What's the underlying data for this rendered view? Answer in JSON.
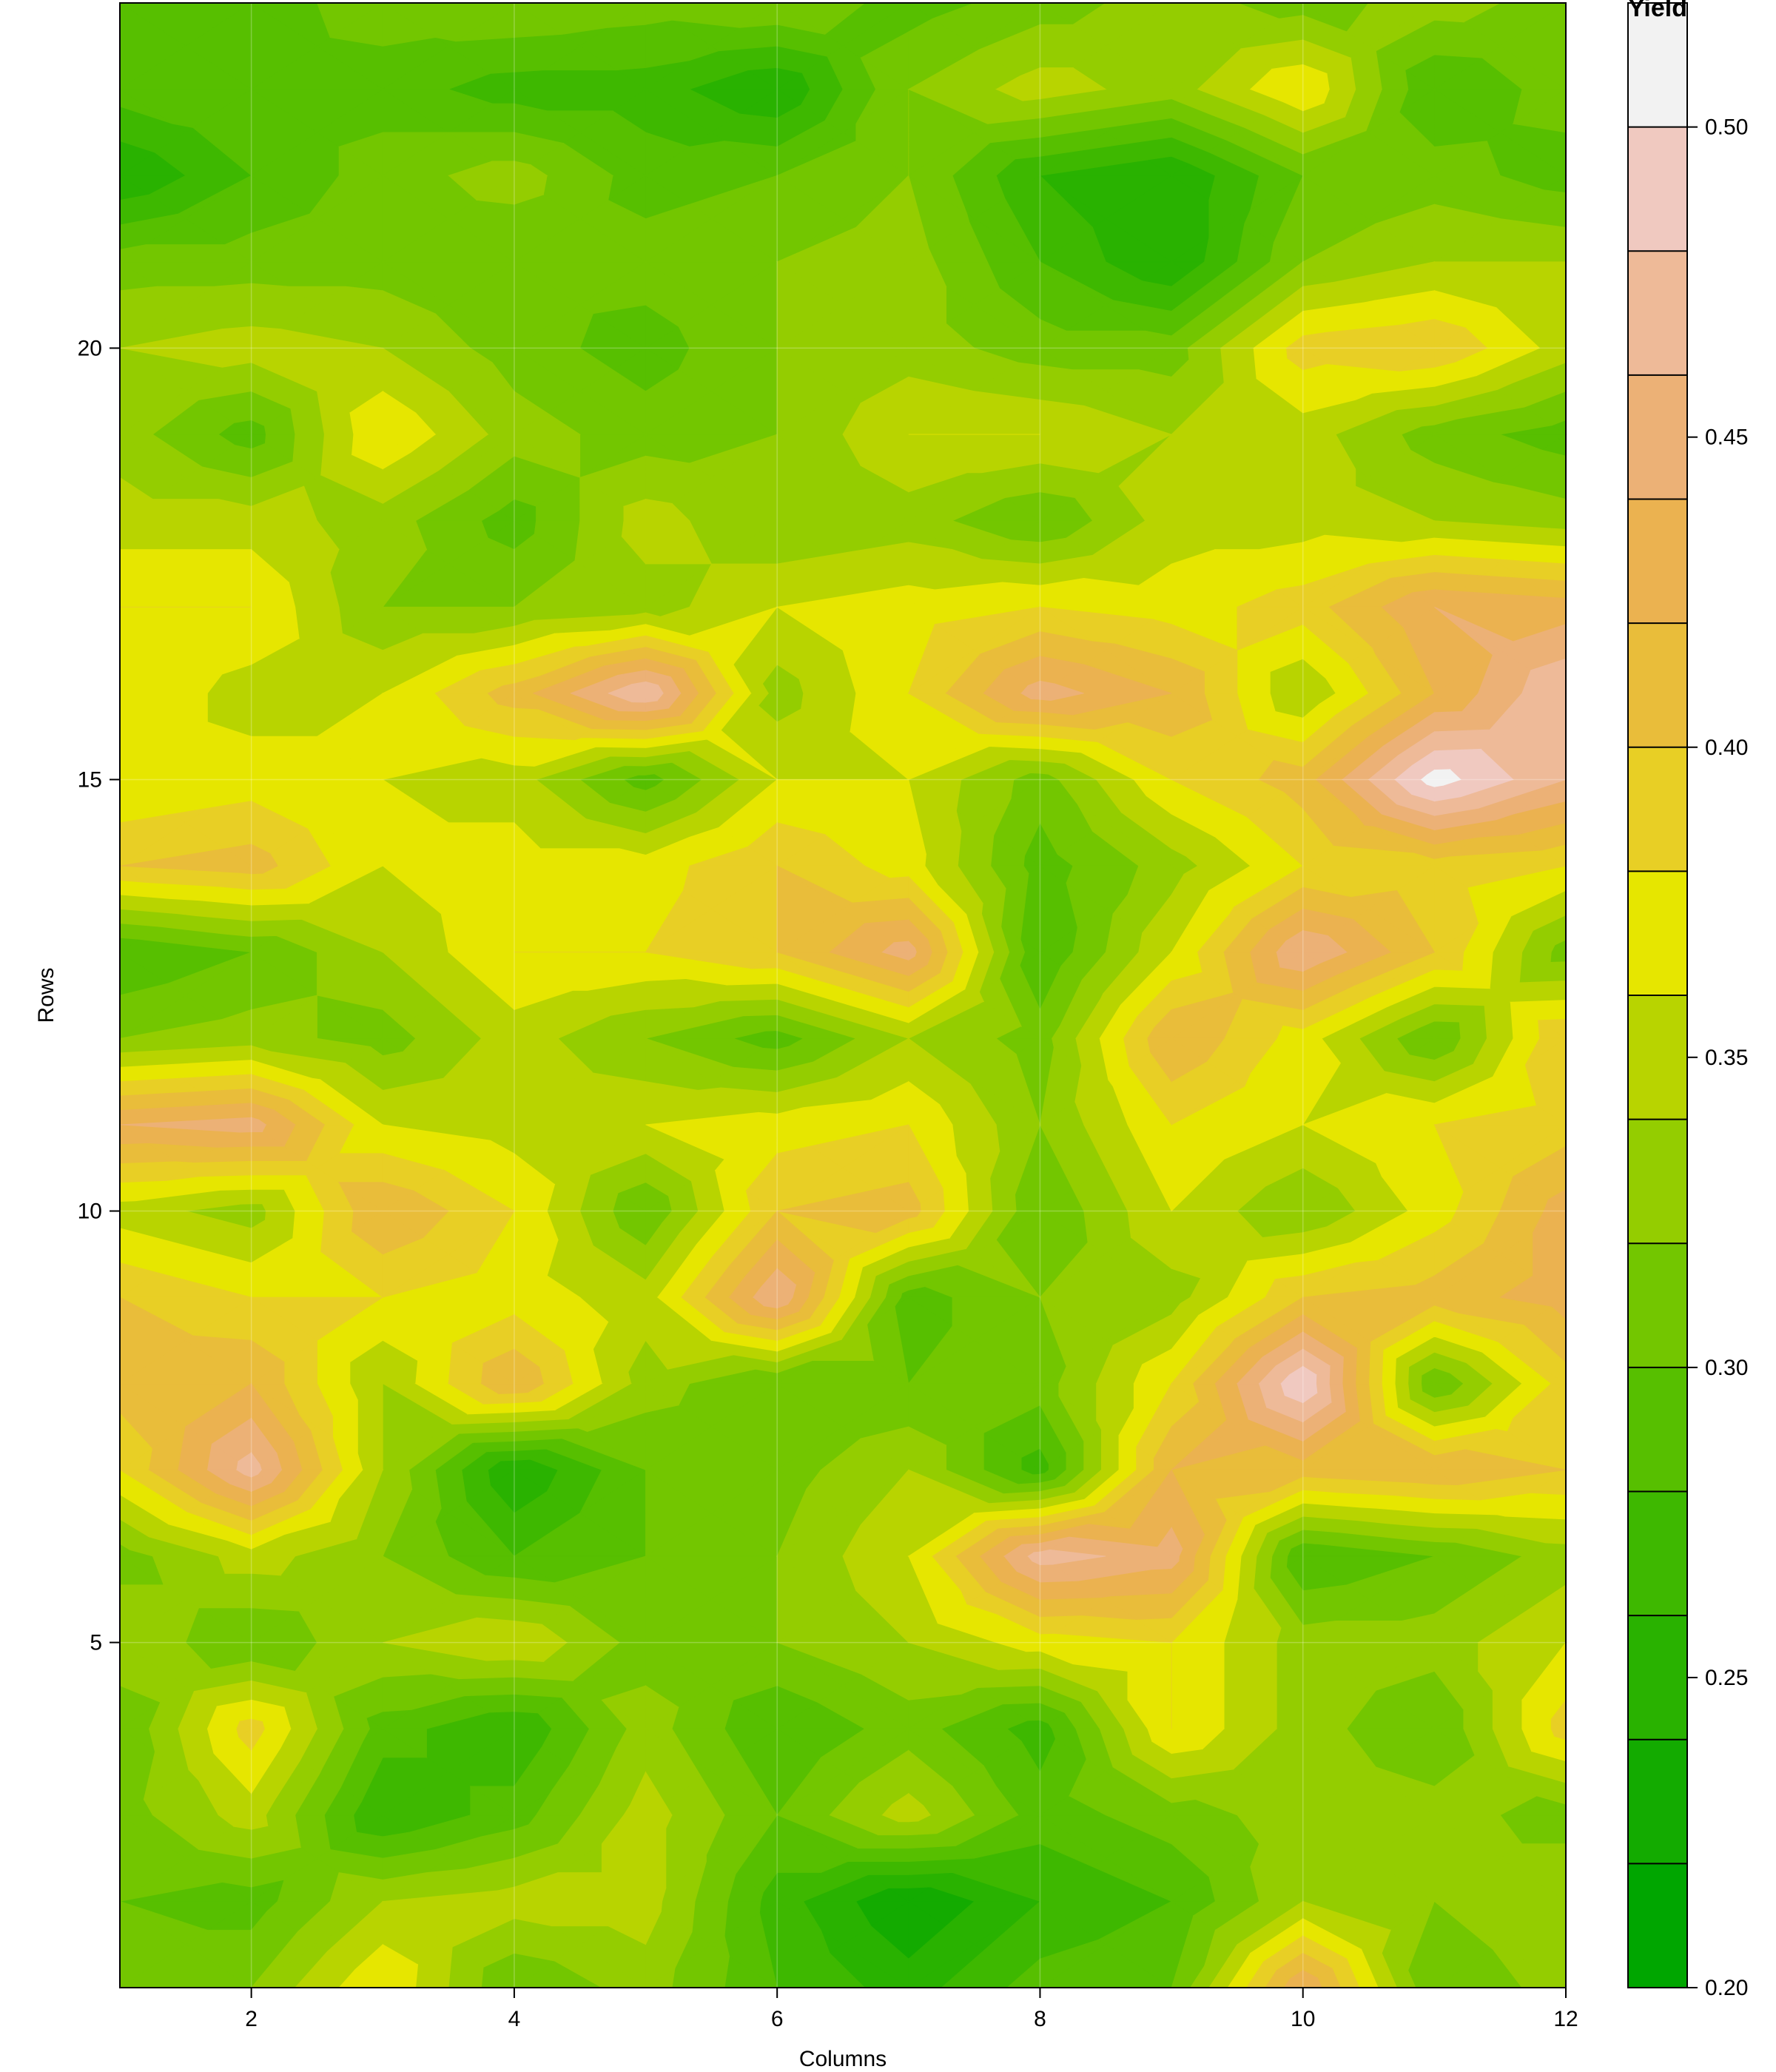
{
  "chart_data": {
    "type": "heatmap",
    "subtype": "filled-contour",
    "xlabel": "Columns",
    "ylabel": "Rows",
    "x_range": [
      1,
      12
    ],
    "y_range": [
      1,
      24
    ],
    "x_ticks": [
      2,
      4,
      6,
      8,
      10,
      12
    ],
    "y_ticks": [
      5,
      10,
      15,
      20
    ],
    "grid": true,
    "legend": {
      "title": "Yield",
      "placement": "right",
      "levels": [
        0.2,
        0.22,
        0.24,
        0.26,
        0.28,
        0.3,
        0.32,
        0.34,
        0.36,
        0.38,
        0.4,
        0.42,
        0.44,
        0.46,
        0.48,
        0.5,
        0.52
      ],
      "labeled_ticks": [
        0.2,
        0.25,
        0.3,
        0.35,
        0.4,
        0.45,
        0.5
      ],
      "colors": [
        "#00A600",
        "#13AB00",
        "#29B200",
        "#3EB800",
        "#57BF00",
        "#73C600",
        "#94CD00",
        "#B8D400",
        "#E6E600",
        "#E8CF25",
        "#E9BD3A",
        "#EBB250",
        "#ECB176",
        "#EEBA98",
        "#F0C9C0",
        "#F2F2F2"
      ]
    },
    "columns": [
      1,
      2,
      3,
      4,
      5,
      6,
      7,
      8,
      9,
      10,
      11,
      12
    ],
    "rows": [
      1,
      2,
      3,
      4,
      5,
      6,
      7,
      8,
      9,
      10,
      11,
      12,
      13,
      14,
      15,
      16,
      17,
      18,
      19,
      20,
      21,
      22,
      23,
      24
    ],
    "z": [
      [
        0.31,
        0.32,
        0.38,
        0.3,
        0.33,
        0.28,
        0.25,
        0.29,
        0.3,
        0.44,
        0.3,
        0.33
      ],
      [
        0.3,
        0.29,
        0.34,
        0.35,
        0.35,
        0.27,
        0.22,
        0.26,
        0.28,
        0.34,
        0.32,
        0.34
      ],
      [
        0.31,
        0.35,
        0.26,
        0.29,
        0.35,
        0.3,
        0.35,
        0.29,
        0.31,
        0.33,
        0.33,
        0.31
      ],
      [
        0.3,
        0.39,
        0.29,
        0.26,
        0.33,
        0.28,
        0.31,
        0.27,
        0.38,
        0.33,
        0.3,
        0.39
      ],
      [
        0.34,
        0.3,
        0.34,
        0.36,
        0.31,
        0.32,
        0.34,
        0.37,
        0.38,
        0.33,
        0.33,
        0.36
      ],
      [
        0.31,
        0.35,
        0.32,
        0.28,
        0.3,
        0.32,
        0.36,
        0.47,
        0.45,
        0.28,
        0.3,
        0.33
      ],
      [
        0.38,
        0.47,
        0.34,
        0.24,
        0.3,
        0.31,
        0.34,
        0.27,
        0.42,
        0.41,
        0.42,
        0.4
      ],
      [
        0.41,
        0.42,
        0.34,
        0.42,
        0.33,
        0.3,
        0.3,
        0.31,
        0.38,
        0.5,
        0.3,
        0.39
      ],
      [
        0.4,
        0.38,
        0.38,
        0.37,
        0.35,
        0.46,
        0.29,
        0.32,
        0.33,
        0.4,
        0.41,
        0.43
      ],
      [
        0.35,
        0.33,
        0.42,
        0.38,
        0.3,
        0.4,
        0.41,
        0.3,
        0.36,
        0.32,
        0.37,
        0.43
      ],
      [
        0.44,
        0.45,
        0.36,
        0.35,
        0.36,
        0.37,
        0.38,
        0.32,
        0.38,
        0.36,
        0.38,
        0.39
      ],
      [
        0.32,
        0.33,
        0.31,
        0.35,
        0.32,
        0.29,
        0.34,
        0.31,
        0.42,
        0.37,
        0.3,
        0.4
      ],
      [
        0.28,
        0.3,
        0.34,
        0.38,
        0.38,
        0.4,
        0.45,
        0.28,
        0.36,
        0.46,
        0.4,
        0.31
      ],
      [
        0.4,
        0.41,
        0.36,
        0.37,
        0.37,
        0.4,
        0.37,
        0.29,
        0.33,
        0.38,
        0.39,
        0.38
      ],
      [
        0.36,
        0.37,
        0.36,
        0.35,
        0.29,
        0.36,
        0.36,
        0.31,
        0.38,
        0.41,
        0.51,
        0.46
      ],
      [
        0.38,
        0.35,
        0.36,
        0.41,
        0.48,
        0.33,
        0.38,
        0.45,
        0.42,
        0.34,
        0.42,
        0.48
      ],
      [
        0.38,
        0.38,
        0.32,
        0.32,
        0.33,
        0.36,
        0.37,
        0.38,
        0.37,
        0.39,
        0.44,
        0.43
      ],
      [
        0.35,
        0.35,
        0.33,
        0.29,
        0.35,
        0.32,
        0.33,
        0.3,
        0.35,
        0.35,
        0.34,
        0.33
      ],
      [
        0.33,
        0.29,
        0.38,
        0.33,
        0.31,
        0.32,
        0.36,
        0.36,
        0.34,
        0.35,
        0.31,
        0.29
      ],
      [
        0.34,
        0.35,
        0.34,
        0.31,
        0.29,
        0.32,
        0.33,
        0.31,
        0.31,
        0.39,
        0.4,
        0.35
      ],
      [
        0.31,
        0.31,
        0.31,
        0.3,
        0.31,
        0.32,
        0.33,
        0.28,
        0.24,
        0.32,
        0.34,
        0.34
      ],
      [
        0.24,
        0.28,
        0.31,
        0.33,
        0.29,
        0.3,
        0.32,
        0.26,
        0.24,
        0.3,
        0.31,
        0.29
      ],
      [
        0.29,
        0.3,
        0.29,
        0.27,
        0.27,
        0.24,
        0.32,
        0.35,
        0.33,
        0.38,
        0.28,
        0.31
      ],
      [
        0.3,
        0.29,
        0.31,
        0.32,
        0.31,
        0.32,
        0.29,
        0.31,
        0.33,
        0.31,
        0.33,
        0.31
      ]
    ]
  }
}
